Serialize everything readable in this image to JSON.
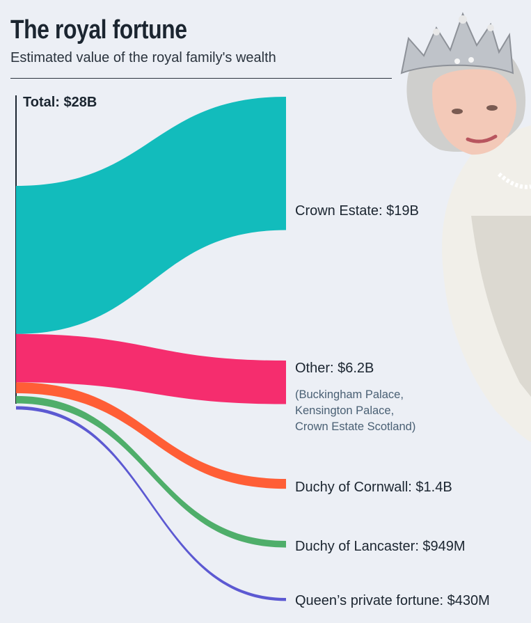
{
  "header": {
    "title": "The royal fortune",
    "subtitle": "Estimated value of the royal family's wealth"
  },
  "total_label": "Total: $28B",
  "note_lines": [
    "(Buckingham Palace,",
    "Kensington Palace,",
    "Crown Estate Scotland)"
  ],
  "colors": {
    "crown_estate": "#12bcbc",
    "other": "#f52d6e",
    "cornwall": "#ff5e36",
    "lancaster": "#4fae6a",
    "private": "#5c59d2",
    "background": "#eceff5"
  },
  "chart_data": {
    "type": "sankey",
    "title": "The royal fortune",
    "subtitle": "Estimated value of the royal family's wealth",
    "unit": "USD",
    "source": {
      "name": "Total",
      "label": "Total: $28B",
      "value_billions": 28
    },
    "flows": [
      {
        "name": "Crown Estate",
        "label": "Crown Estate: $19B",
        "value_billions": 19
      },
      {
        "name": "Other",
        "label": "Other: $6.2B",
        "value_billions": 6.2
      },
      {
        "name": "Duchy of Cornwall",
        "label": "Duchy of Cornwall: $1.4B",
        "value_billions": 1.4
      },
      {
        "name": "Duchy of Lancaster",
        "label": "Duchy of Lancaster: $949M",
        "value_billions": 0.949
      },
      {
        "name": "Queen’s private fortune",
        "label": "Queen’s private fortune: $430M",
        "value_billions": 0.43
      }
    ]
  }
}
